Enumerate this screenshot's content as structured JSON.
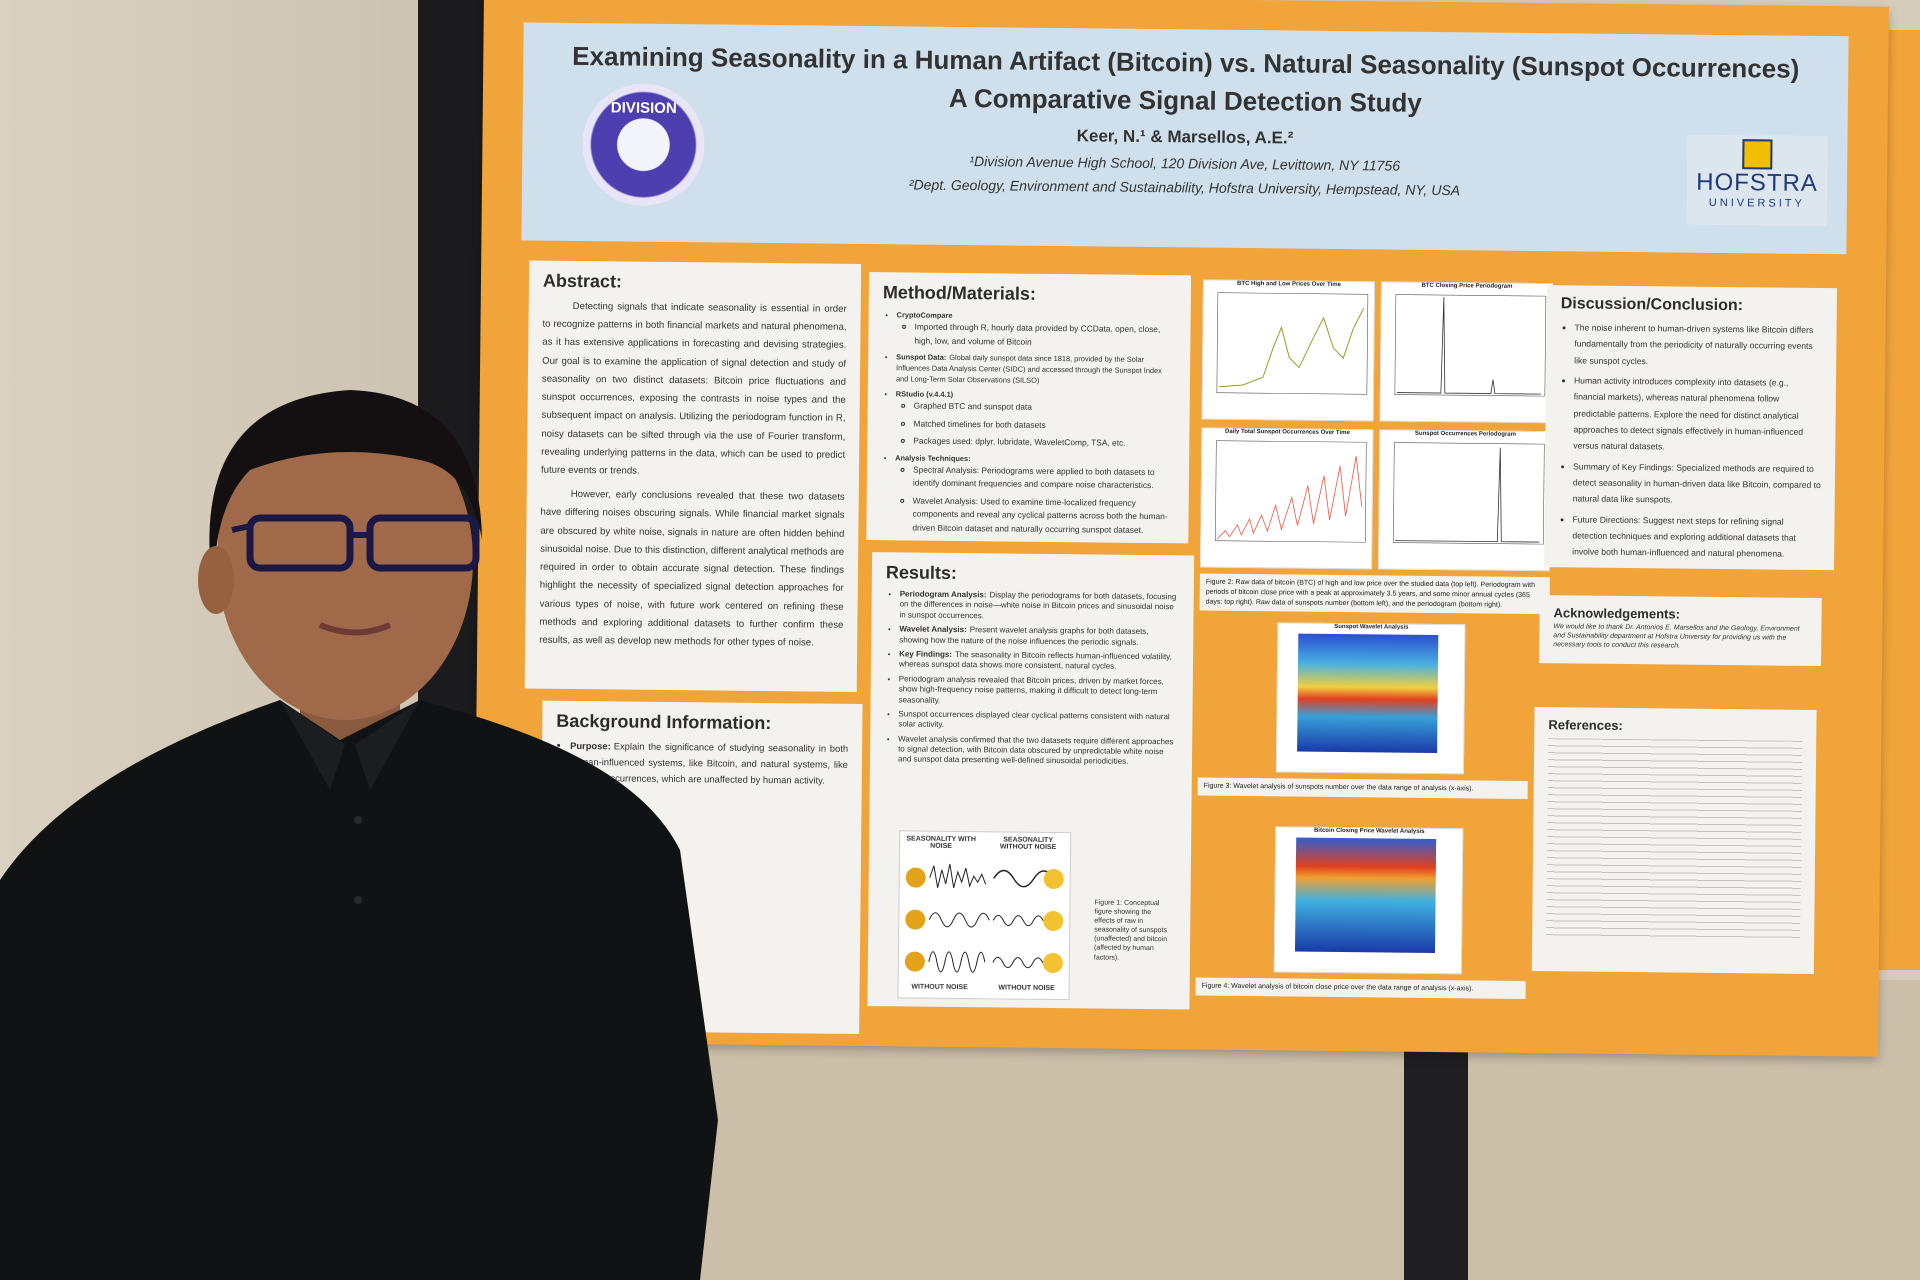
{
  "poster": {
    "title": "Examining Seasonality in a Human Artifact (Bitcoin) vs. Natural Seasonality (Sunspot Occurrences)",
    "subtitle": "A Comparative Signal Detection Study",
    "authors": "Keer, N.¹ & Marsellos, A.E.²",
    "affiliations": [
      "¹Division Avenue High School, 120 Division Ave, Levittown, NY 11756",
      "²Dept. Geology, Environment and Sustainability, Hofstra University, Hempstead, NY, USA"
    ],
    "logos": {
      "left": "DIVISION",
      "right": [
        "HOFSTRA",
        "UNIVERSITY"
      ]
    },
    "abstract": {
      "heading": "Abstract:",
      "paragraphs": [
        "Detecting signals that indicate seasonality is essential in order to recognize patterns in both financial markets and natural phenomena, as it has extensive applications in forecasting and devising strategies. Our goal is to examine the application of signal detection and study of seasonality on two distinct datasets: Bitcoin price fluctuations and sunspot occurrences, exposing the contrasts in noise types and the subsequent impact on analysis. Utilizing the periodogram function in R, noisy datasets can be sifted through via the use of Fourier transform, revealing underlying patterns in the data, which can be used to predict future events or trends.",
        "However, early conclusions revealed that these two datasets have differing noises obscuring signals. While financial market signals are obscured by white noise, signals in nature are often hidden behind sinusoidal noise. Due to this distinction, different analytical methods are required in order to obtain accurate signal detection. These findings highlight the necessity of specialized signal detection approaches for various types of noise, with future work centered on refining these methods and exploring additional datasets to further confirm these results, as well as develop new methods for other types of noise."
      ]
    },
    "background": {
      "heading": "Background Information:",
      "items": [
        {
          "label": "Purpose:",
          "text": "Explain the significance of studying seasonality in both human-influenced systems, like Bitcoin, and natural systems, like sunspot occurrences, which are unaffected by human activity."
        }
      ]
    },
    "methods": {
      "heading": "Method/Materials:",
      "items": [
        {
          "label": "CryptoCompare",
          "sub": [
            "Imported through R, hourly data provided by CCData. open, close, high, low, and volume of Bitcoin"
          ]
        },
        {
          "label": "Sunspot Data:",
          "text": "Global daily sunspot data since 1818, provided by the Solar Influences Data Analysis Center (SIDC) and accessed through the Sunspot Index and Long-Term Solar Observations (SILSO)"
        },
        {
          "label": "RStudio (v.4.4.1)",
          "sub": [
            "Graphed BTC and sunspot data",
            "Matched timelines for both datasets",
            "Packages used: dplyr, lubridate, WaveletComp, TSA, etc."
          ]
        },
        {
          "label": "Analysis Techniques:",
          "sub": [
            "Spectral Analysis: Periodograms were applied to both datasets to identify dominant frequencies and compare noise characteristics.",
            "Wavelet Analysis: Used to examine time-localized frequency components and reveal any cyclical patterns across both the human-driven Bitcoin dataset and naturally occurring sunspot dataset."
          ]
        }
      ]
    },
    "results": {
      "heading": "Results:",
      "items": [
        {
          "label": "Periodogram Analysis:",
          "text": "Display the periodograms for both datasets, focusing on the differences in noise—white noise in Bitcoin prices and sinusoidal noise in sunspot occurrences."
        },
        {
          "label": "Wavelet Analysis:",
          "text": "Present wavelet analysis graphs for both datasets, showing how the nature of the noise influences the periodic signals."
        },
        {
          "label": "Key Findings:",
          "text": "The seasonality in Bitcoin reflects human-influenced volatility, whereas sunspot data shows more consistent, natural cycles."
        },
        "Periodogram analysis revealed that Bitcoin prices, driven by market forces, show high-frequency noise patterns, making it difficult to detect long-term seasonality.",
        "Sunspot occurrences displayed clear cyclical patterns consistent with natural solar activity.",
        "Wavelet analysis confirmed that the two datasets require different approaches to signal detection, with Bitcoin data obscured by unpredictable white noise and sunspot data presenting well-defined sinusoidal periodicities."
      ],
      "figure_labels": [
        "SEASONALITY WITH NOISE",
        "SEASONALITY WITHOUT NOISE",
        "WITHOUT NOISE",
        "WITHOUT NOISE"
      ],
      "figure_caption": "Figure 1: Conceptual figure showing the effects of raw in seasonality of sunspots (unaffected) and bitcoin (affected by human factors)."
    },
    "figures": {
      "plot_titles": [
        "BTC High and Low Prices Over Time",
        "BTC Closing Price Periodogram",
        "Daily Total Sunspot Occurrences Over Time",
        "Sunspot Occurrences Periodogram"
      ],
      "caption_2": "Figure 2: Raw data of bitcoin (BTC) of high and low price over the studied data (top left). Periodogram with periods of bitcoin close price with a peak at approximately 3.5 years, and some minor annual cycles (365 days: top right). Raw data of sunspots number (bottom left), and the periodogram (bottom right).",
      "wavelet_titles": [
        "Sunspot Wavelet Analysis",
        "Bitcoin Closing Price Wavelet Analysis"
      ],
      "caption_3": "Figure 3: Wavelet analysis of sunspots number over the data range of analysis (x-axis).",
      "caption_4": "Figure 4: Wavelet analysis of bitcoin close price over the data range of analysis (x-axis)."
    },
    "discussion": {
      "heading": "Discussion/Conclusion:",
      "items": [
        "The noise inherent to human-driven systems like Bitcoin differs fundamentally from the periodicity of naturally occurring events like sunspot cycles.",
        "Human activity introduces complexity into datasets (e.g., financial markets), whereas natural phenomena follow predictable patterns. Explore the need for distinct analytical approaches to detect signals effectively in human-influenced versus natural datasets.",
        "Summary of Key Findings: Specialized methods are required to detect seasonality in human-driven data like Bitcoin, compared to natural data like sunspots.",
        "Future Directions: Suggest next steps for refining signal detection techniques and exploring additional datasets that involve both human-influenced and natural phenomena."
      ]
    },
    "acknowledgements": {
      "heading": "Acknowledgements:",
      "text": "We would like to thank Dr. Antonios E. Marsellos and the Geology, Environment and Sustainability department at Hofstra University for providing us with the necessary tools to conduct this research."
    },
    "references": {
      "heading": "References:"
    }
  }
}
